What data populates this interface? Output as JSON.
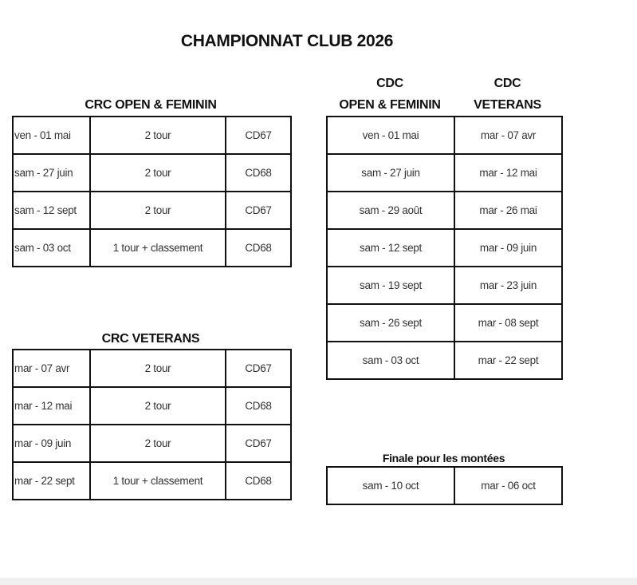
{
  "title": "CHAMPIONNAT CLUB 2026",
  "crc_open": {
    "heading": "CRC OPEN & FEMININ",
    "rows": [
      [
        "ven - 01 mai",
        "2 tour",
        "CD67"
      ],
      [
        "sam - 27 juin",
        "2 tour",
        "CD68"
      ],
      [
        "sam - 12 sept",
        "2 tour",
        "CD67"
      ],
      [
        "sam - 03 oct",
        "1 tour + classement",
        "CD68"
      ]
    ]
  },
  "crc_veterans": {
    "heading": "CRC VETERANS",
    "rows": [
      [
        "mar - 07 avr",
        "2 tour",
        "CD67"
      ],
      [
        "mar - 12 mai",
        "2 tour",
        "CD68"
      ],
      [
        "mar - 09 juin",
        "2 tour",
        "CD67"
      ],
      [
        "mar - 22 sept",
        "1 tour + classement",
        "CD68"
      ]
    ]
  },
  "cdc": {
    "heading_open_line1": "CDC",
    "heading_open_line2": "OPEN & FEMININ",
    "heading_vet_line1": "CDC",
    "heading_vet_line2": "VETERANS",
    "rows": [
      [
        "ven - 01 mai",
        "mar - 07 avr"
      ],
      [
        "sam - 27 juin",
        "mar - 12 mai"
      ],
      [
        "sam - 29 août",
        "mar - 26 mai"
      ],
      [
        "sam - 12 sept",
        "mar - 09 juin"
      ],
      [
        "sam - 19 sept",
        "mar - 23 juin"
      ],
      [
        "sam - 26 sept",
        "mar - 08 sept"
      ],
      [
        "sam - 03 oct",
        "mar - 22 sept"
      ]
    ]
  },
  "finale": {
    "heading": "Finale pour les montées",
    "rows": [
      [
        "sam - 10 oct",
        "mar - 06 oct"
      ]
    ]
  }
}
